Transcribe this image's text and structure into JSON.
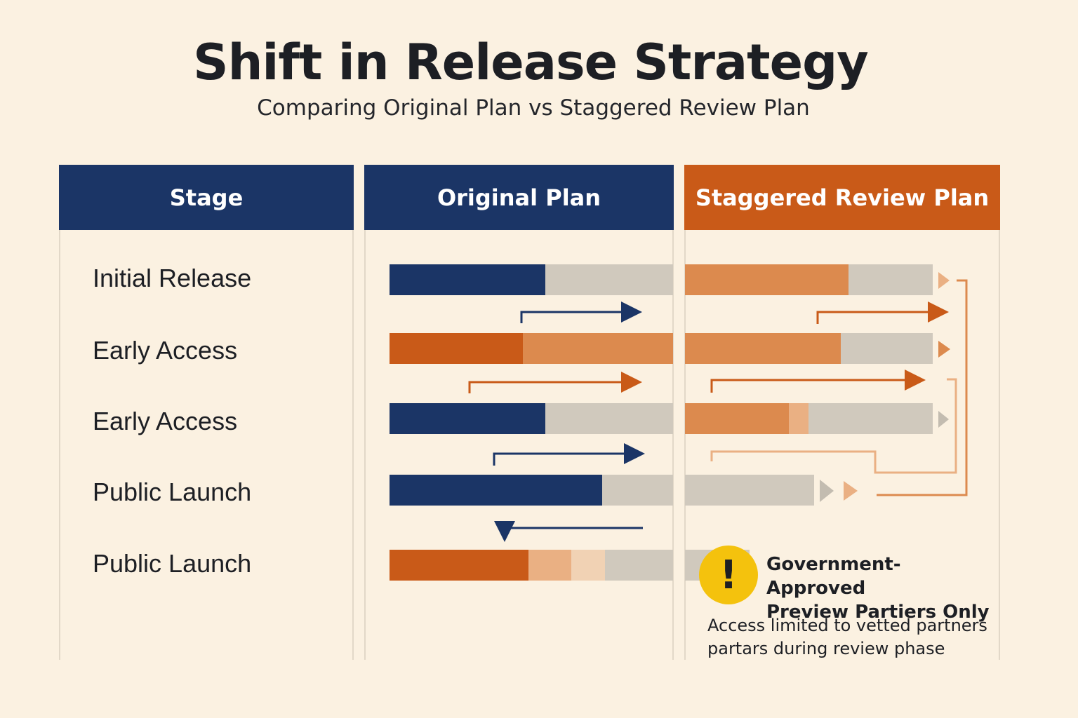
{
  "title": "Shift in Release Strategy",
  "subtitle": "Comparing Original Plan vs Staggered Review Plan",
  "columns": {
    "stage": "Stage",
    "original": "Original Plan",
    "staggered": "Staggered Review Plan"
  },
  "colors": {
    "navy": "#1b3566",
    "orange": "#c95a18",
    "light_orange": "#dc8a4e",
    "peach": "#eab083",
    "pale_peach": "#f1d2b4",
    "gray": "#d0c9bd",
    "warning": "#f4c20d"
  },
  "stages": [
    {
      "label": "Initial Release",
      "original": {
        "progress": 0.55,
        "color": "navy"
      },
      "staggered": {
        "segments": [
          {
            "share": 0.66,
            "color": "light_orange"
          }
        ],
        "arrow": "peach"
      }
    },
    {
      "label": "Early Access",
      "original": {
        "segments": [
          {
            "share": 0.47,
            "color": "orange"
          },
          {
            "share": 0.53,
            "color": "light_orange"
          }
        ]
      },
      "staggered": {
        "segments": [
          {
            "share": 0.63,
            "color": "light_orange"
          }
        ],
        "arrow": "light_orange"
      }
    },
    {
      "label": "Early Access",
      "original": {
        "progress": 0.55,
        "color": "navy"
      },
      "staggered": {
        "segments": [
          {
            "share": 0.42,
            "color": "light_orange"
          },
          {
            "share": 0.08,
            "color": "peach"
          }
        ],
        "arrow": "gray"
      }
    },
    {
      "label": "Public Launch",
      "original": {
        "progress": 0.75,
        "color": "navy"
      },
      "staggered": {
        "segments": [],
        "arrow": "gray"
      }
    },
    {
      "label": "Public Launch",
      "original": {
        "segments": [
          {
            "share": 0.49,
            "color": "orange"
          },
          {
            "share": 0.15,
            "color": "peach"
          },
          {
            "share": 0.12,
            "color": "pale_peach"
          }
        ]
      },
      "staggered": {
        "segments": []
      }
    }
  ],
  "notice": {
    "icon": "warning-icon",
    "title_line1": "Government-Approved",
    "title_line2": "Preview Partiers Only",
    "body_line1": "Access limited to vetted partners",
    "body_line2": "partars during review phase"
  }
}
